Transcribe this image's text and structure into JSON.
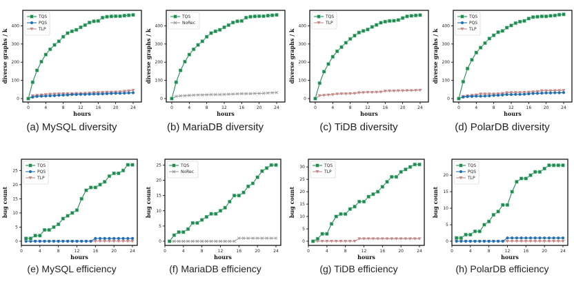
{
  "colors": {
    "TQS": "#1f8a52",
    "PQS": "#1f6fb4",
    "TLP": "#c48a8a",
    "NoRec": "#999999"
  },
  "captions": [
    "(a) MySQL diversity",
    "(b) MariaDB diversity",
    "(c) TiDB diversity",
    "(d) PolarDB diversity",
    "(e) MySQL efficiency",
    "(f) MariaDB efficiency",
    "(g) TiDB efficiency",
    "(h) PolarDB efficiency"
  ],
  "chart_data": [
    {
      "type": "line",
      "title": "(a) MySQL diversity",
      "xlabel": "hours",
      "ylabel": "diverse graphs / k",
      "xlim": [
        0,
        24
      ],
      "ylim": [
        0,
        470
      ],
      "xticks": [
        0,
        4,
        8,
        12,
        16,
        20,
        24
      ],
      "yticks": [
        0,
        100,
        200,
        300,
        400
      ],
      "legend": "top-left",
      "x": [
        0,
        1,
        2,
        3,
        4,
        5,
        6,
        7,
        8,
        9,
        10,
        11,
        12,
        13,
        14,
        15,
        16,
        17,
        18,
        19,
        20,
        21,
        22,
        23,
        24
      ],
      "series": [
        {
          "name": "TQS",
          "marker": "square",
          "values": [
            0,
            90,
            155,
            203,
            242,
            271,
            295,
            315,
            340,
            360,
            370,
            378,
            392,
            404,
            418,
            425,
            427,
            445,
            450,
            452,
            453,
            453,
            456,
            458,
            460
          ]
        },
        {
          "name": "PQS",
          "marker": "circle",
          "values": [
            0,
            8,
            12,
            13,
            14,
            15,
            16,
            18,
            19,
            20,
            22,
            22,
            23,
            23,
            24,
            25,
            25,
            26,
            27,
            28,
            29,
            29,
            30,
            31,
            32
          ]
        },
        {
          "name": "TLP",
          "marker": "triangle",
          "values": [
            0,
            15,
            18,
            20,
            22,
            24,
            25,
            26,
            27,
            27,
            27,
            28,
            28,
            29,
            30,
            32,
            33,
            34,
            35,
            35,
            36,
            37,
            40,
            42,
            45
          ]
        }
      ]
    },
    {
      "type": "line",
      "title": "(b) MariaDB diversity",
      "xlabel": "hours",
      "ylabel": "diverse graphs / k",
      "xlim": [
        0,
        24
      ],
      "ylim": [
        0,
        470
      ],
      "xticks": [
        0,
        4,
        8,
        12,
        16,
        20,
        24
      ],
      "yticks": [
        0,
        100,
        200,
        300,
        400
      ],
      "legend": "top-left",
      "x": [
        0,
        1,
        2,
        3,
        4,
        5,
        6,
        7,
        8,
        9,
        10,
        11,
        12,
        13,
        14,
        15,
        16,
        17,
        18,
        19,
        20,
        21,
        22,
        23,
        24
      ],
      "series": [
        {
          "name": "TQS",
          "marker": "square",
          "values": [
            0,
            90,
            155,
            203,
            242,
            271,
            295,
            315,
            340,
            360,
            370,
            378,
            392,
            404,
            418,
            425,
            427,
            445,
            450,
            452,
            453,
            453,
            456,
            458,
            460
          ]
        },
        {
          "name": "NoRec",
          "marker": "x",
          "values": [
            0,
            12,
            15,
            16,
            18,
            19,
            20,
            20,
            21,
            22,
            22,
            22,
            23,
            24,
            25,
            26,
            27,
            27,
            27,
            28,
            28,
            29,
            31,
            32,
            33
          ]
        }
      ]
    },
    {
      "type": "line",
      "title": "(c) TiDB diversity",
      "xlabel": "hours",
      "ylabel": "diverse graphs / k",
      "xlim": [
        0,
        24
      ],
      "ylim": [
        0,
        470
      ],
      "xticks": [
        0,
        4,
        8,
        12,
        16,
        20,
        24
      ],
      "yticks": [
        0,
        100,
        200,
        300,
        400
      ],
      "legend": "top-left",
      "x": [
        0,
        1,
        2,
        3,
        4,
        5,
        6,
        7,
        8,
        9,
        10,
        11,
        12,
        13,
        14,
        15,
        16,
        17,
        18,
        19,
        20,
        21,
        22,
        23,
        24
      ],
      "series": [
        {
          "name": "TQS",
          "marker": "square",
          "values": [
            0,
            85,
            148,
            190,
            230,
            260,
            283,
            307,
            328,
            346,
            363,
            372,
            380,
            394,
            405,
            417,
            423,
            427,
            428,
            432,
            443,
            452,
            455,
            457,
            459
          ]
        },
        {
          "name": "TLP",
          "marker": "triangle",
          "values": [
            0,
            16,
            18,
            20,
            22,
            25,
            26,
            26,
            27,
            28,
            32,
            33,
            34,
            34,
            35,
            36,
            41,
            42,
            42,
            43,
            43,
            44,
            44,
            45,
            46
          ]
        }
      ]
    },
    {
      "type": "line",
      "title": "(d) PolarDB diversity",
      "xlabel": "hours",
      "ylabel": "diverse graphs / k",
      "xlim": [
        0,
        24
      ],
      "ylim": [
        0,
        470
      ],
      "xticks": [
        0,
        4,
        8,
        12,
        16,
        20,
        24
      ],
      "yticks": [
        0,
        100,
        200,
        300,
        400
      ],
      "legend": "top-left",
      "x": [
        0,
        1,
        2,
        3,
        4,
        5,
        6,
        7,
        8,
        9,
        10,
        11,
        12,
        13,
        14,
        15,
        16,
        17,
        18,
        19,
        20,
        21,
        22,
        23,
        24
      ],
      "series": [
        {
          "name": "TQS",
          "marker": "square",
          "values": [
            0,
            93,
            165,
            213,
            253,
            280,
            305,
            330,
            348,
            365,
            372,
            390,
            402,
            415,
            423,
            427,
            440,
            448,
            450,
            452,
            452,
            455,
            457,
            461,
            463
          ]
        },
        {
          "name": "PQS",
          "marker": "circle",
          "values": [
            0,
            8,
            11,
            12,
            13,
            13,
            14,
            15,
            17,
            18,
            20,
            22,
            22,
            23,
            23,
            24,
            26,
            28,
            29,
            30,
            31,
            31,
            32,
            32,
            33
          ]
        },
        {
          "name": "TLP",
          "marker": "triangle",
          "values": [
            0,
            12,
            15,
            18,
            20,
            25,
            25,
            25,
            25,
            26,
            28,
            32,
            33,
            33,
            33,
            34,
            35,
            37,
            39,
            43,
            43,
            43,
            44,
            44,
            45
          ]
        }
      ]
    },
    {
      "type": "line",
      "title": "(e) MySQL efficiency",
      "xlabel": "hours",
      "ylabel": "bug count",
      "xlim": [
        0,
        24
      ],
      "ylim": [
        -0.5,
        28
      ],
      "xticks": [
        0,
        4,
        8,
        12,
        16,
        20,
        24
      ],
      "yticks": [
        0,
        5,
        10,
        15,
        20,
        25
      ],
      "legend": "top-left",
      "x": [
        1,
        2,
        3,
        4,
        5,
        6,
        7,
        8,
        9,
        10,
        11,
        12,
        13,
        14,
        15,
        16,
        17,
        18,
        19,
        20,
        21,
        22,
        23,
        24
      ],
      "series": [
        {
          "name": "TQS",
          "marker": "square",
          "values": [
            1,
            1,
            2,
            2,
            4,
            4,
            5,
            6,
            8,
            9,
            10,
            11,
            15,
            18,
            19,
            19,
            20,
            21,
            23,
            24,
            24,
            25,
            27,
            27
          ]
        },
        {
          "name": "PQS",
          "marker": "circle",
          "values": [
            0,
            0,
            0,
            0,
            0,
            0,
            0,
            0,
            0,
            0,
            0,
            0,
            0,
            0,
            0,
            1,
            1,
            1,
            1,
            1,
            1,
            1,
            1,
            1
          ]
        },
        {
          "name": "TLP",
          "marker": "triangle",
          "values": [
            0,
            0,
            0,
            0,
            0,
            0,
            0,
            0,
            0,
            0,
            0,
            0,
            0,
            0,
            0,
            0,
            0,
            0,
            0,
            0,
            0,
            0,
            0,
            0
          ]
        }
      ]
    },
    {
      "type": "line",
      "title": "(f) MariaDB efficiency",
      "xlabel": "hours",
      "ylabel": "bug count",
      "xlim": [
        0,
        24
      ],
      "ylim": [
        -0.5,
        26
      ],
      "xticks": [
        0,
        4,
        8,
        12,
        16,
        20,
        24
      ],
      "yticks": [
        0,
        5,
        10,
        15,
        20,
        25
      ],
      "legend": "top-left",
      "x": [
        1,
        2,
        3,
        4,
        5,
        6,
        7,
        8,
        9,
        10,
        11,
        12,
        13,
        14,
        15,
        16,
        17,
        18,
        19,
        20,
        21,
        22,
        23,
        24
      ],
      "series": [
        {
          "name": "TQS",
          "marker": "square",
          "values": [
            0,
            2,
            3,
            3,
            4,
            6,
            6,
            7,
            8,
            9,
            9,
            10,
            11,
            13,
            15,
            15,
            16,
            18,
            19,
            21,
            23,
            24,
            25,
            25
          ]
        },
        {
          "name": "NoRec",
          "marker": "x",
          "values": [
            0,
            0,
            0,
            0,
            0,
            0,
            0,
            0,
            0,
            0,
            0,
            0,
            0,
            0,
            0,
            1,
            1,
            1,
            1,
            1,
            1,
            1,
            1,
            1
          ]
        }
      ]
    },
    {
      "type": "line",
      "title": "(g) TiDB efficiency",
      "xlabel": "hours",
      "ylabel": "bug count",
      "xlim": [
        0,
        24
      ],
      "ylim": [
        -0.5,
        32
      ],
      "xticks": [
        0,
        4,
        8,
        12,
        16,
        20,
        24
      ],
      "yticks": [
        0,
        5,
        10,
        15,
        20,
        25,
        30
      ],
      "legend": "top-left",
      "x": [
        1,
        2,
        3,
        4,
        5,
        6,
        7,
        8,
        9,
        10,
        11,
        12,
        13,
        14,
        15,
        16,
        17,
        18,
        19,
        20,
        21,
        22,
        23,
        24
      ],
      "series": [
        {
          "name": "TQS",
          "marker": "square",
          "values": [
            0,
            1,
            3,
            3,
            7,
            10,
            11,
            11,
            13,
            14,
            16,
            16,
            18,
            19,
            20,
            22,
            24,
            26,
            26,
            28,
            29,
            30,
            31,
            31
          ]
        },
        {
          "name": "TLP",
          "marker": "triangle",
          "values": [
            0,
            0,
            0,
            0,
            0,
            0,
            0,
            0,
            0,
            0,
            1,
            1,
            1,
            1,
            1,
            1,
            1,
            1,
            1,
            1,
            1,
            1,
            1,
            1
          ]
        }
      ]
    },
    {
      "type": "line",
      "title": "(h) PolarDB efficiency",
      "xlabel": "hours",
      "ylabel": "bug count",
      "xlim": [
        0,
        24
      ],
      "ylim": [
        -0.5,
        24
      ],
      "xticks": [
        0,
        4,
        8,
        12,
        16,
        20,
        24
      ],
      "yticks": [
        0,
        5,
        10,
        15,
        20
      ],
      "legend": "top-left",
      "x": [
        1,
        2,
        3,
        4,
        5,
        6,
        7,
        8,
        9,
        10,
        11,
        12,
        13,
        14,
        15,
        16,
        17,
        18,
        19,
        20,
        21,
        22,
        23,
        24
      ],
      "series": [
        {
          "name": "TQS",
          "marker": "square",
          "values": [
            1,
            1,
            2,
            2,
            3,
            3,
            5,
            6,
            8,
            9,
            11,
            11,
            15,
            18,
            19,
            19,
            20,
            21,
            21,
            22,
            23,
            23,
            23,
            23
          ]
        },
        {
          "name": "PQS",
          "marker": "circle",
          "values": [
            0,
            0,
            0,
            0,
            0,
            0,
            0,
            0,
            0,
            0,
            0,
            1,
            1,
            1,
            1,
            1,
            1,
            1,
            1,
            1,
            1,
            1,
            1,
            1
          ]
        },
        {
          "name": "TLP",
          "marker": "triangle",
          "values": [
            0,
            0,
            0,
            0,
            0,
            0,
            0,
            0,
            0,
            0,
            0,
            0,
            0,
            0,
            0,
            0,
            0,
            0,
            0,
            0,
            0,
            0,
            0,
            0
          ]
        }
      ]
    }
  ]
}
